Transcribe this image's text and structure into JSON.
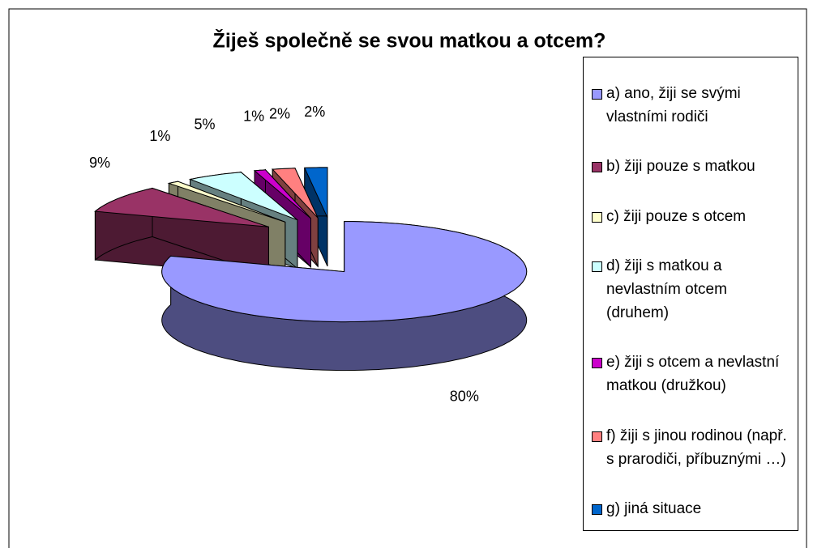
{
  "chart_data": {
    "type": "pie3d",
    "title": "Žiješ společně se svou matkou a otcem?",
    "categories": [
      "a) ano, žiji se svými vlastními rodiči",
      "b) žiji pouze s matkou",
      "c) žiji pouze s otcem",
      "d) žiji s matkou a nevlastním otcem (druhem)",
      "e) žiji s otcem a nevlastní matkou (družkou)",
      "f) žiji s jinou rodinou (např. s prarodiči, příbuznými …)",
      "g) jiná situace"
    ],
    "values": [
      80,
      9,
      1,
      5,
      1,
      2,
      2
    ],
    "value_labels": [
      "80%",
      "9%",
      "1%",
      "5%",
      "1%",
      "2%",
      "2%"
    ],
    "colors": [
      "#9999ff",
      "#993366",
      "#ffffcc",
      "#ccffff",
      "#cc00cc",
      "#ff8080",
      "#0066cc"
    ],
    "legend": "right"
  }
}
